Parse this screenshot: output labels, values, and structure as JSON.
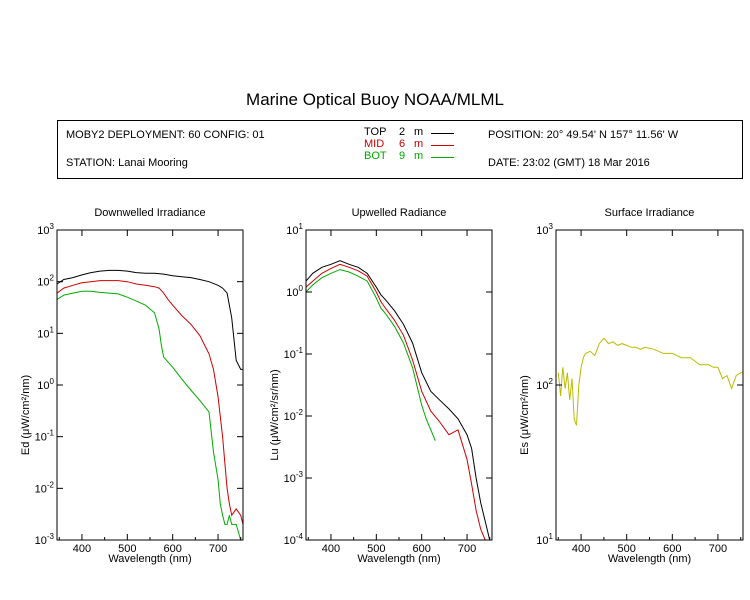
{
  "title": "Marine Optical Buoy NOAA/MLML",
  "info": {
    "deployment": "MOBY2 DEPLOYMENT: 60 CONFIG: 01",
    "station": "STATION: Lanai Mooring",
    "position": "POSITION: 20° 49.54' N   157° 11.56' W",
    "date": "DATE: 23:02 (GMT) 18 Mar 2016"
  },
  "legend": [
    {
      "name": "TOP",
      "depth": "2",
      "unit": "m",
      "color": "#000000"
    },
    {
      "name": "MID",
      "depth": "6",
      "unit": "m",
      "color": "#cc0000"
    },
    {
      "name": "BOT",
      "depth": "9",
      "unit": "m",
      "color": "#00aa00"
    }
  ],
  "chart_data": [
    {
      "type": "line",
      "title": "Downwelled Irradiance",
      "xlabel": "Wavelength (nm)",
      "ylabel_main": "Ed",
      "ylabel_unit": "(μW/cm²/nm)",
      "y_scale": "log",
      "xlim": [
        345,
        755
      ],
      "ylim": [
        0.001,
        1000
      ],
      "x_ticks": [
        400,
        500,
        600,
        700
      ],
      "y_ticks": [
        {
          "base": "10",
          "exp": "3"
        },
        {
          "base": "10",
          "exp": "2"
        },
        {
          "base": "10",
          "exp": "1"
        },
        {
          "base": "10",
          "exp": "0"
        },
        {
          "base": "10",
          "exp": "-1"
        },
        {
          "base": "10",
          "exp": "-2"
        },
        {
          "base": "10",
          "exp": "-3"
        }
      ],
      "series": [
        {
          "name": "TOP",
          "color": "#000000",
          "x": [
            345,
            360,
            380,
            400,
            420,
            440,
            460,
            480,
            500,
            520,
            540,
            560,
            580,
            600,
            620,
            640,
            660,
            680,
            700,
            710,
            720,
            730,
            740,
            750,
            755
          ],
          "y": [
            90,
            110,
            120,
            135,
            150,
            160,
            165,
            165,
            160,
            150,
            145,
            145,
            140,
            130,
            125,
            120,
            110,
            100,
            85,
            75,
            60,
            20,
            3,
            2,
            2
          ]
        },
        {
          "name": "MID",
          "color": "#cc0000",
          "x": [
            345,
            360,
            380,
            400,
            420,
            440,
            460,
            480,
            500,
            520,
            540,
            560,
            570,
            580,
            590,
            600,
            620,
            640,
            660,
            680,
            690,
            700,
            710,
            715,
            720,
            725,
            730,
            740,
            750,
            755
          ],
          "y": [
            60,
            75,
            85,
            95,
            100,
            105,
            105,
            105,
            100,
            90,
            85,
            80,
            75,
            60,
            45,
            35,
            22,
            15,
            9,
            4,
            2,
            0.6,
            0.1,
            0.03,
            0.01,
            0.005,
            0.003,
            0.004,
            0.003,
            0.002
          ]
        },
        {
          "name": "BOT",
          "color": "#00aa00",
          "x": [
            345,
            360,
            380,
            400,
            420,
            440,
            460,
            480,
            500,
            520,
            540,
            560,
            570,
            575,
            580,
            600,
            620,
            640,
            660,
            680,
            690,
            700,
            705,
            710,
            715,
            720,
            725,
            730,
            740,
            750,
            755
          ],
          "y": [
            45,
            55,
            60,
            65,
            65,
            62,
            60,
            58,
            50,
            42,
            35,
            25,
            12,
            6,
            3.5,
            2.2,
            1.3,
            0.8,
            0.5,
            0.3,
            0.05,
            0.015,
            0.005,
            0.003,
            0.002,
            0.002,
            0.003,
            0.002,
            0.002,
            0.001,
            0.001
          ]
        }
      ]
    },
    {
      "type": "line",
      "title": "Upwelled Radiance",
      "xlabel": "Wavelength (nm)",
      "ylabel_main": "Lu",
      "ylabel_unit": "(μW/cm²/sr/nm)",
      "y_scale": "log",
      "xlim": [
        345,
        755
      ],
      "ylim": [
        0.0001,
        10
      ],
      "x_ticks": [
        400,
        500,
        600,
        700
      ],
      "y_ticks": [
        {
          "base": "10",
          "exp": "1"
        },
        {
          "base": "10",
          "exp": "0"
        },
        {
          "base": "10",
          "exp": "-1"
        },
        {
          "base": "10",
          "exp": "-2"
        },
        {
          "base": "10",
          "exp": "-3"
        },
        {
          "base": "10",
          "exp": "-4"
        }
      ],
      "series": [
        {
          "name": "TOP",
          "color": "#000000",
          "x": [
            345,
            360,
            380,
            400,
            420,
            440,
            460,
            480,
            500,
            510,
            520,
            540,
            560,
            580,
            600,
            620,
            640,
            660,
            680,
            700,
            710,
            720,
            730,
            740,
            750,
            755
          ],
          "y": [
            1.5,
            2.0,
            2.5,
            2.8,
            3.2,
            2.8,
            2.5,
            2.0,
            1.2,
            0.9,
            0.75,
            0.5,
            0.3,
            0.15,
            0.05,
            0.025,
            0.018,
            0.013,
            0.009,
            0.005,
            0.003,
            0.001,
            0.0004,
            0.0002,
            0.0001,
            0.0001
          ]
        },
        {
          "name": "MID",
          "color": "#cc0000",
          "x": [
            345,
            360,
            380,
            400,
            420,
            440,
            460,
            480,
            500,
            510,
            520,
            540,
            560,
            580,
            600,
            620,
            640,
            660,
            680,
            700,
            710,
            720,
            730,
            740,
            750,
            755
          ],
          "y": [
            1.2,
            1.5,
            2.0,
            2.4,
            2.8,
            2.5,
            2.2,
            1.8,
            1.0,
            0.7,
            0.55,
            0.35,
            0.2,
            0.08,
            0.025,
            0.012,
            0.008,
            0.005,
            0.006,
            0.002,
            0.0008,
            0.0003,
            0.00015,
            0.0001,
            0.0001,
            0.0001
          ]
        },
        {
          "name": "BOT",
          "color": "#00aa00",
          "x": [
            345,
            360,
            380,
            400,
            420,
            440,
            460,
            480,
            500,
            510,
            520,
            540,
            560,
            580,
            590,
            600,
            610,
            620,
            630
          ],
          "y": [
            1.0,
            1.3,
            1.7,
            2.0,
            2.3,
            2.1,
            1.8,
            1.5,
            0.8,
            0.55,
            0.45,
            0.28,
            0.15,
            0.06,
            0.03,
            0.015,
            0.009,
            0.006,
            0.004
          ]
        }
      ]
    },
    {
      "type": "line",
      "title": "Surface Irradiance",
      "xlabel": "Wavelength (nm)",
      "ylabel_main": "Es",
      "ylabel_unit": "(μW/cm²/nm)",
      "y_scale": "log",
      "xlim": [
        345,
        755
      ],
      "ylim": [
        10,
        1000
      ],
      "x_ticks": [
        400,
        500,
        600,
        700
      ],
      "y_ticks": [
        {
          "base": "10",
          "exp": "3"
        },
        {
          "base": "10",
          "exp": "2"
        },
        {
          "base": "10",
          "exp": "1"
        }
      ],
      "series": [
        {
          "name": "Es",
          "color": "#bbbb00",
          "x": [
            350,
            355,
            360,
            365,
            370,
            375,
            380,
            385,
            390,
            395,
            400,
            405,
            410,
            420,
            430,
            440,
            450,
            460,
            470,
            480,
            490,
            500,
            510,
            520,
            530,
            540,
            560,
            580,
            600,
            620,
            640,
            660,
            680,
            690,
            700,
            710,
            720,
            730,
            740,
            750,
            755
          ],
          "y": [
            120,
            85,
            130,
            95,
            120,
            80,
            110,
            60,
            55,
            100,
            130,
            150,
            160,
            165,
            155,
            185,
            200,
            185,
            190,
            180,
            185,
            180,
            175,
            175,
            170,
            175,
            170,
            160,
            160,
            150,
            150,
            135,
            135,
            130,
            130,
            110,
            115,
            95,
            115,
            120,
            120
          ]
        }
      ]
    }
  ]
}
